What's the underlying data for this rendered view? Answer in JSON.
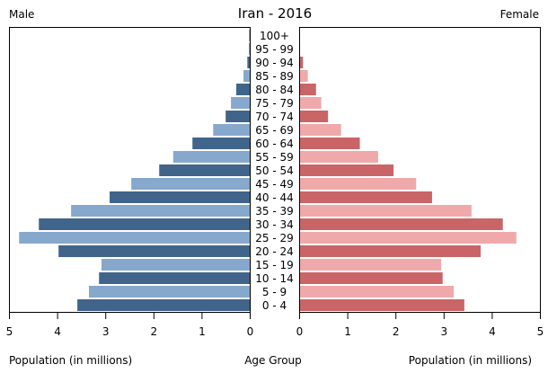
{
  "chart_data": {
    "type": "bar",
    "subtype": "population-pyramid",
    "title": "Iran - 2016",
    "left_label": "Male",
    "right_label": "Female",
    "center_label": "Age Group",
    "xlabel_left": "Population (in millions)",
    "xlabel_right": "Population (in millions)",
    "xlim": [
      0,
      5
    ],
    "xticks_left": [
      "5",
      "4",
      "3",
      "2",
      "1",
      "0"
    ],
    "xticks_right": [
      "0",
      "1",
      "2",
      "3",
      "4",
      "5"
    ],
    "categories": [
      "100+",
      "95 - 99",
      "90 - 94",
      "85 - 89",
      "80 - 84",
      "75 - 79",
      "70 - 74",
      "65 - 69",
      "60 - 64",
      "55 - 59",
      "50 - 54",
      "45 - 49",
      "40 - 44",
      "35 - 39",
      "30 - 34",
      "25 - 29",
      "20 - 24",
      "15 - 19",
      "10 - 14",
      "5 - 9",
      "0 - 4"
    ],
    "series": [
      {
        "name": "Male",
        "colors": [
          "#41648a",
          "#87a8cd"
        ],
        "values": [
          0.01,
          0.02,
          0.05,
          0.13,
          0.28,
          0.39,
          0.5,
          0.76,
          1.19,
          1.59,
          1.88,
          2.46,
          2.91,
          3.71,
          4.38,
          4.79,
          3.97,
          3.08,
          3.13,
          3.34,
          3.58
        ]
      },
      {
        "name": "Female",
        "colors": [
          "#c96566",
          "#f0a9aa"
        ],
        "values": [
          0.01,
          0.02,
          0.08,
          0.18,
          0.35,
          0.46,
          0.6,
          0.87,
          1.26,
          1.64,
          1.96,
          2.43,
          2.76,
          3.58,
          4.23,
          4.51,
          3.77,
          2.95,
          2.98,
          3.21,
          3.43
        ]
      }
    ],
    "grid": false,
    "legend": "none"
  }
}
